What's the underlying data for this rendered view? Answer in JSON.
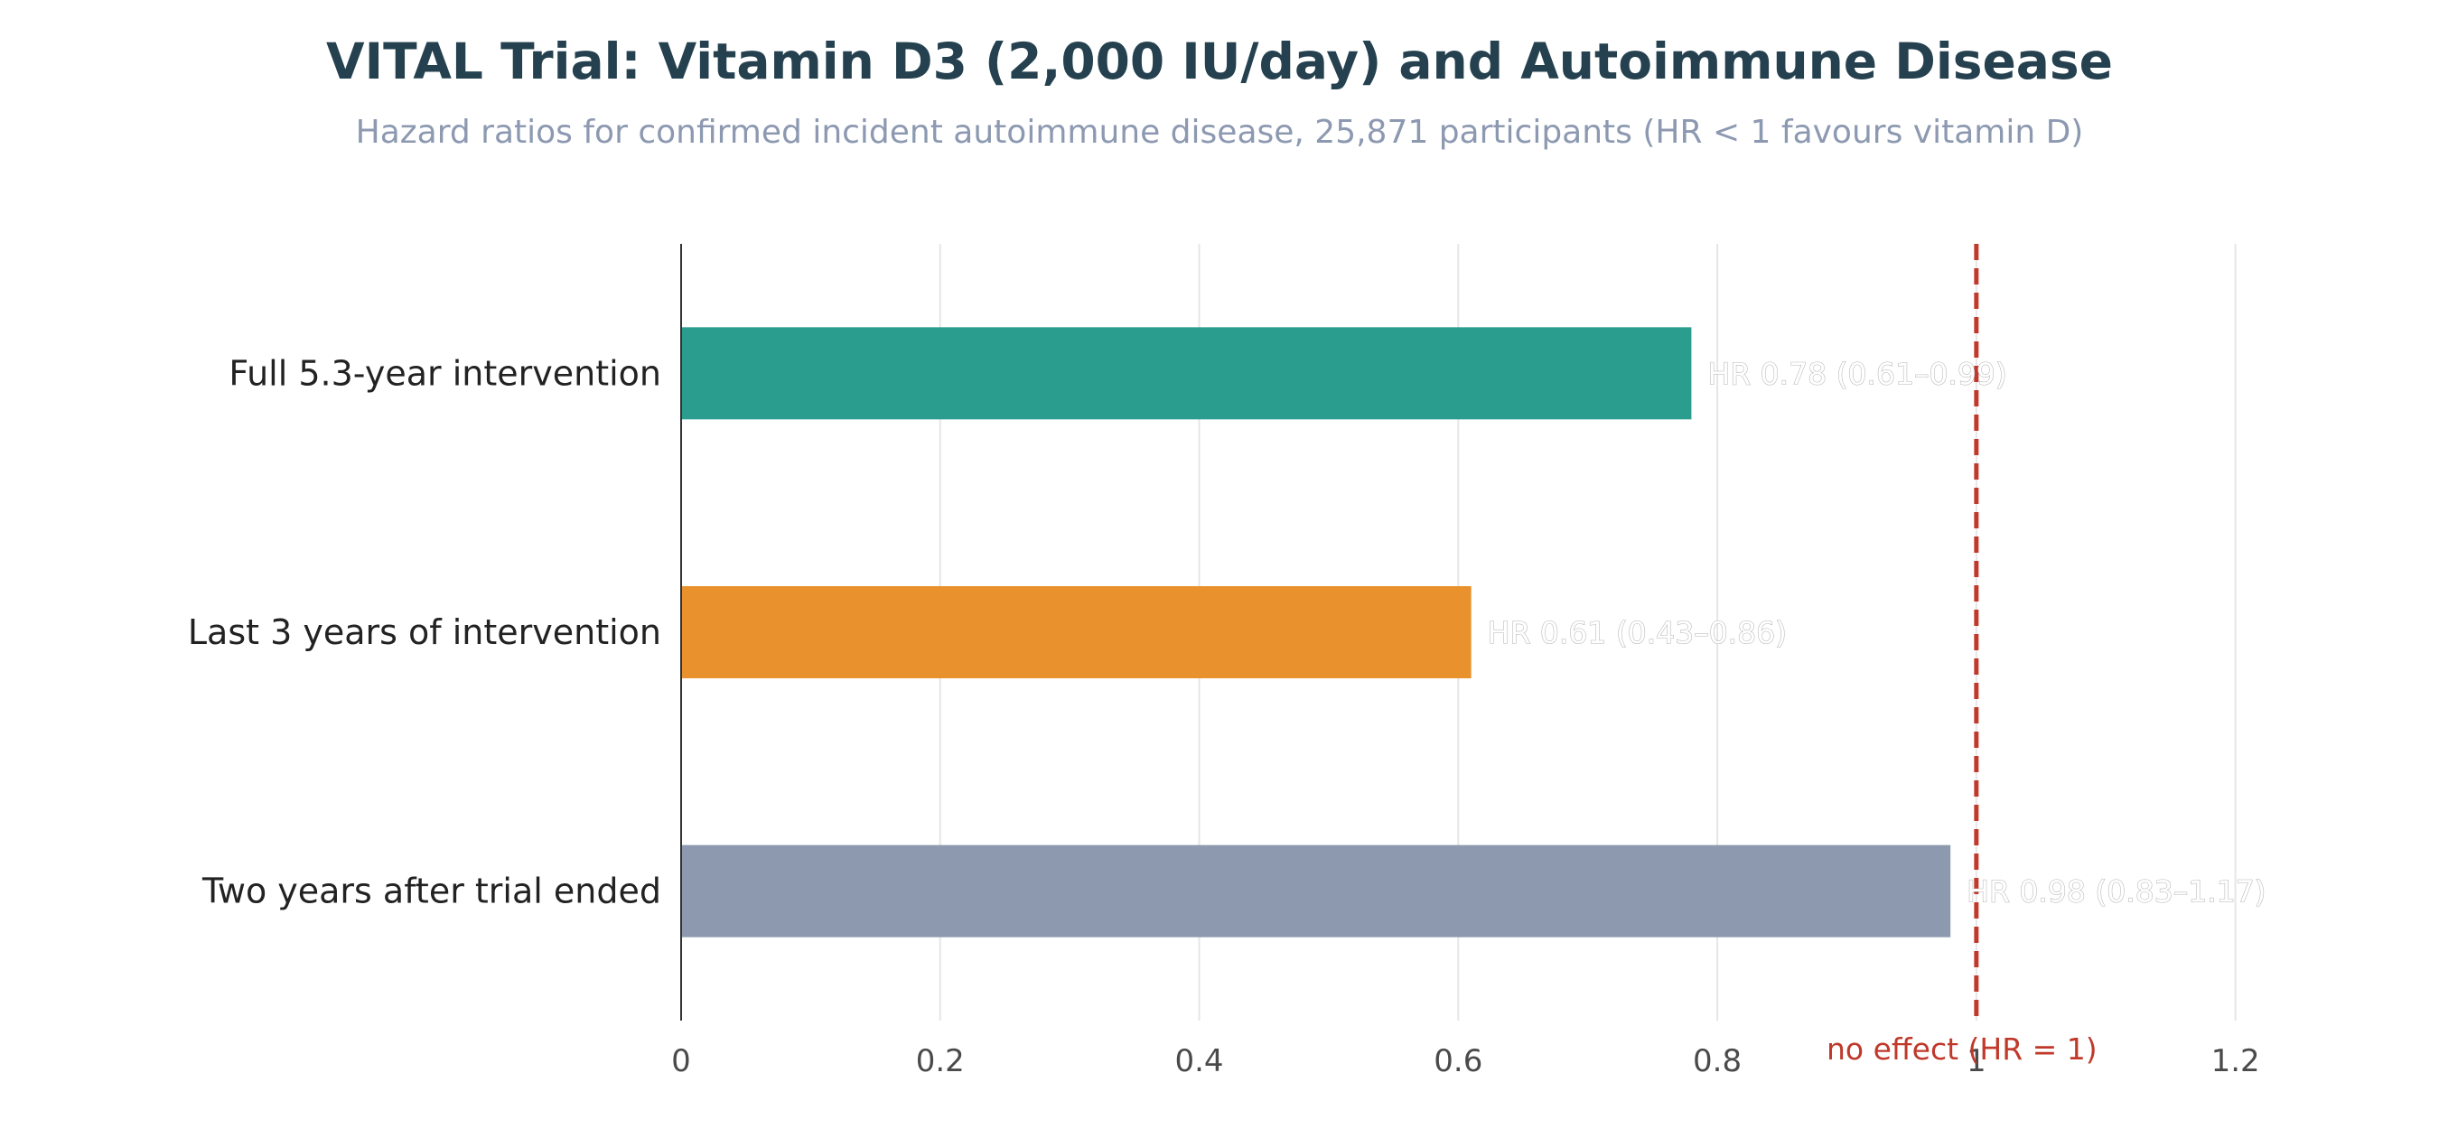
{
  "chart_data": {
    "type": "bar",
    "orientation": "horizontal",
    "title": "VITAL Trial: Vitamin D3 (2,000 IU/day) and Autoimmune Disease",
    "subtitle": "Hazard ratios for confirmed incident autoimmune disease, 25,871 participants (HR < 1 favours vitamin D)",
    "categories": [
      "Full 5.3-year intervention",
      "Last 3 years of intervention",
      "Two years after trial ended"
    ],
    "values": [
      0.78,
      0.61,
      0.98
    ],
    "data_labels": [
      "HR 0.78 (0.61–0.99)",
      "HR 0.61 (0.43–0.86)",
      "HR 0.98 (0.83–1.17)"
    ],
    "colors": [
      "#2a9d8f",
      "#e8912d",
      "#8d99ae"
    ],
    "xlim": [
      0,
      1.3
    ],
    "xticks": [
      0,
      0.2,
      0.4,
      0.6,
      0.8,
      1,
      1.2
    ],
    "xtick_labels": [
      "0",
      "0.2",
      "0.4",
      "0.6",
      "0.8",
      "1",
      "1.2"
    ],
    "xlabel": "",
    "ylabel": "",
    "grid": "vertical",
    "reference_line": {
      "value": 1,
      "label": "no effect (HR = 1)",
      "color": "#c0392b",
      "style": "dashed"
    }
  }
}
